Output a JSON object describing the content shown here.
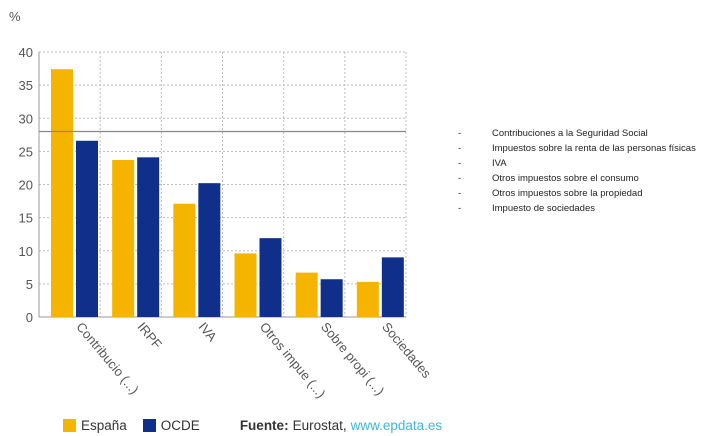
{
  "colors": {
    "espana": "#f5b400",
    "ocde": "#0f2f8a",
    "grid": "#bbbbbb",
    "refline": "#888888",
    "link": "#3fb6d8"
  },
  "chart_data": {
    "type": "bar",
    "unit_label": "%",
    "categories": [
      "Contribucio (...)",
      "IRPF",
      "IVA",
      "Otros impue (...)",
      "Sobre propi (...)",
      "Sociedades"
    ],
    "series": [
      {
        "name": "España",
        "values": [
          37.4,
          23.7,
          17.1,
          9.6,
          6.7,
          5.3
        ]
      },
      {
        "name": "OCDE",
        "values": [
          26.6,
          24.1,
          20.2,
          11.9,
          5.7,
          9.0
        ]
      }
    ],
    "reference_line": 28,
    "ylim": [
      0,
      40
    ],
    "yticks": [
      0,
      5,
      10,
      15,
      20,
      25,
      30,
      35,
      40
    ],
    "grid": true,
    "legend_position": "bottom"
  },
  "side_legend": {
    "dash": "-",
    "items": [
      "Contribuciones a la Seguridad Social",
      "Impuestos sobre la renta de las personas físicas",
      "IVA",
      "Otros impuestos sobre el consumo",
      "Otros impuestos sobre la propiedad",
      "Impuesto de sociedades"
    ]
  },
  "footer": {
    "espana_label": "España",
    "ocde_label": "OCDE",
    "source_label": "Fuente:",
    "source_text": "Eurostat,",
    "source_url": "www.epdata.es"
  }
}
